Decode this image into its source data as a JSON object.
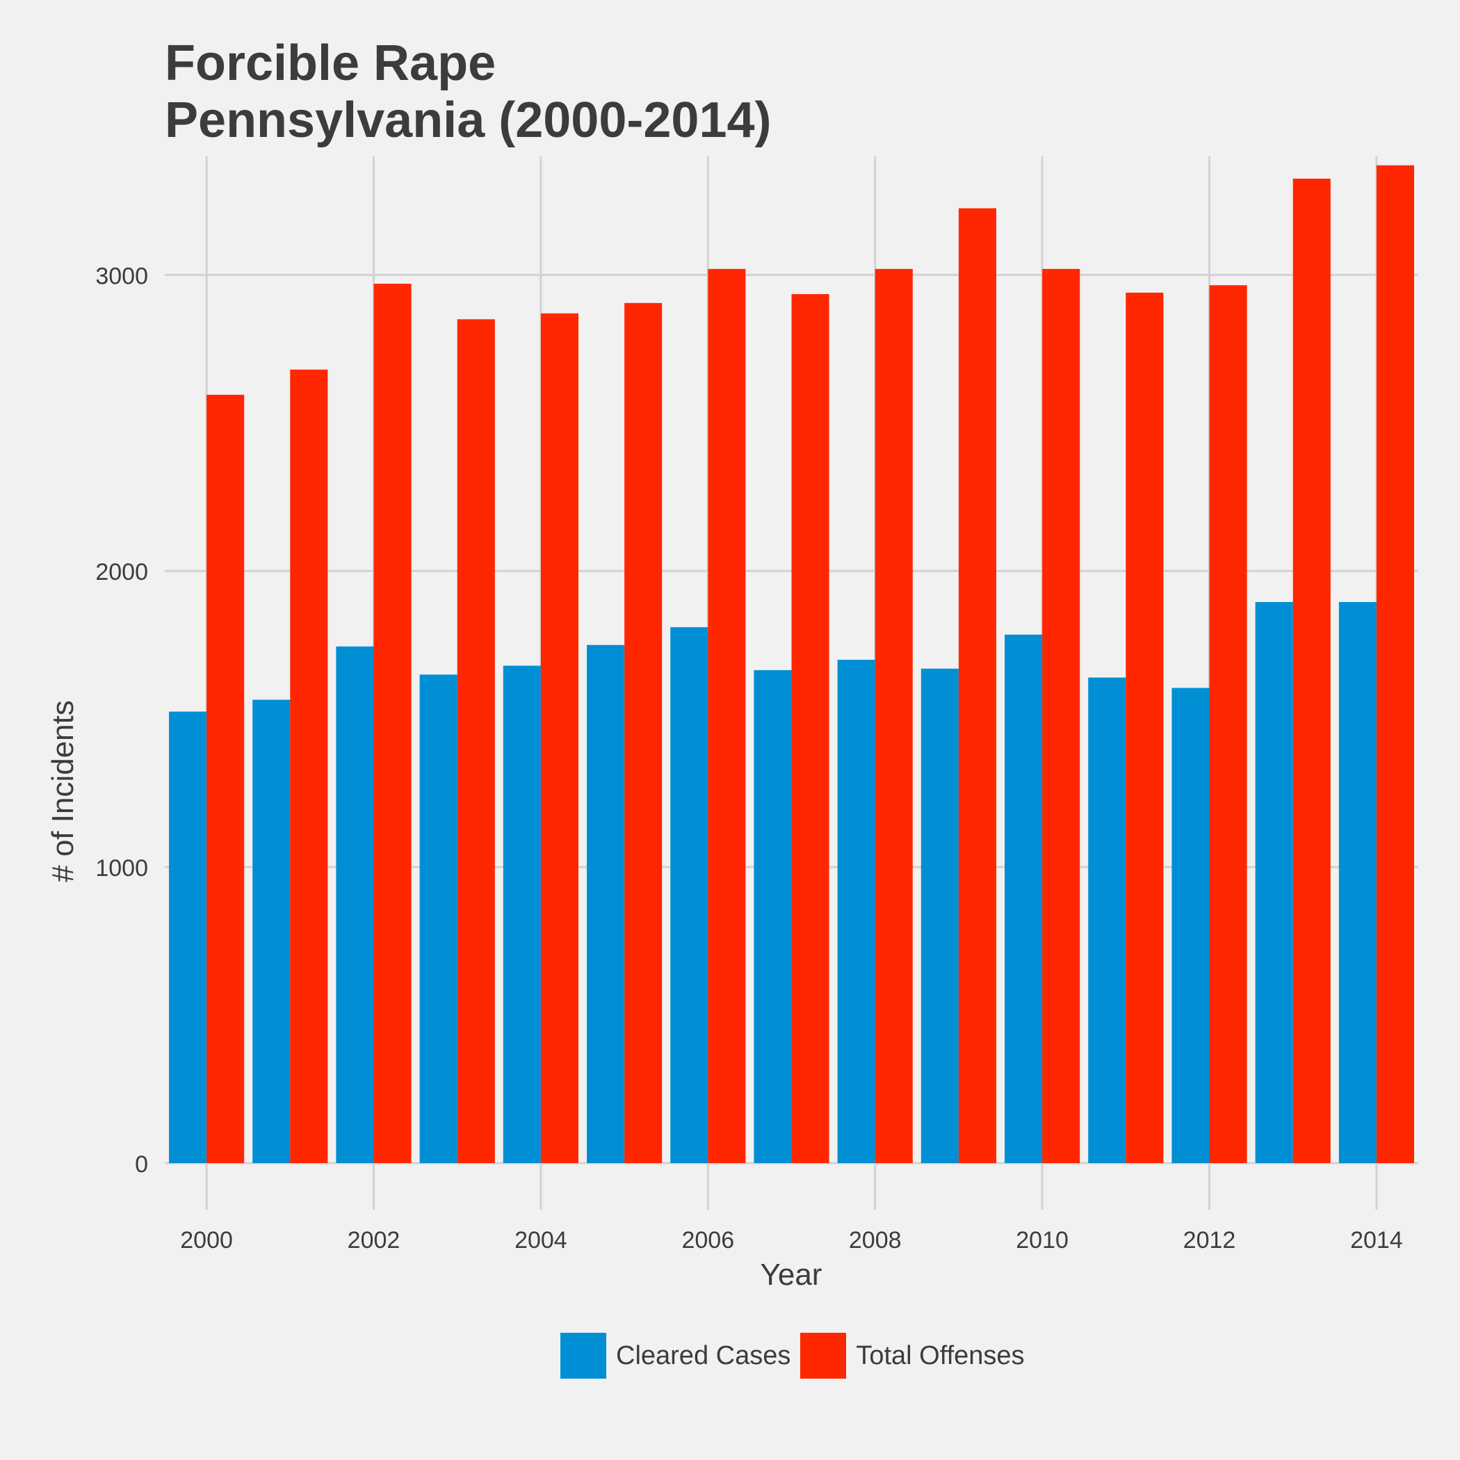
{
  "chart_data": {
    "type": "bar",
    "title": "Forcible Rape",
    "subtitle": "Pennsylvania (2000-2014)",
    "xlabel": "Year",
    "ylabel": "# of Incidents",
    "categories": [
      2000,
      2001,
      2002,
      2003,
      2004,
      2005,
      2006,
      2007,
      2008,
      2009,
      2010,
      2011,
      2012,
      2013,
      2014
    ],
    "x_ticks": [
      "2000",
      "2002",
      "2004",
      "2006",
      "2008",
      "2010",
      "2012",
      "2014"
    ],
    "y_ticks": [
      "0",
      "1000",
      "2000",
      "3000"
    ],
    "ylim": [
      0,
      3400
    ],
    "grid": true,
    "legend_position": "bottom",
    "series": [
      {
        "name": "Cleared Cases",
        "color": "#008fd5",
        "values": [
          1525,
          1565,
          1745,
          1650,
          1680,
          1750,
          1810,
          1665,
          1700,
          1670,
          1785,
          1640,
          1605,
          1895,
          1895
        ]
      },
      {
        "name": "Total Offenses",
        "color": "#ff2700",
        "values": [
          2595,
          2680,
          2970,
          2850,
          2870,
          2905,
          3020,
          2935,
          3020,
          3225,
          3020,
          2940,
          2965,
          3325,
          3370
        ]
      }
    ]
  }
}
